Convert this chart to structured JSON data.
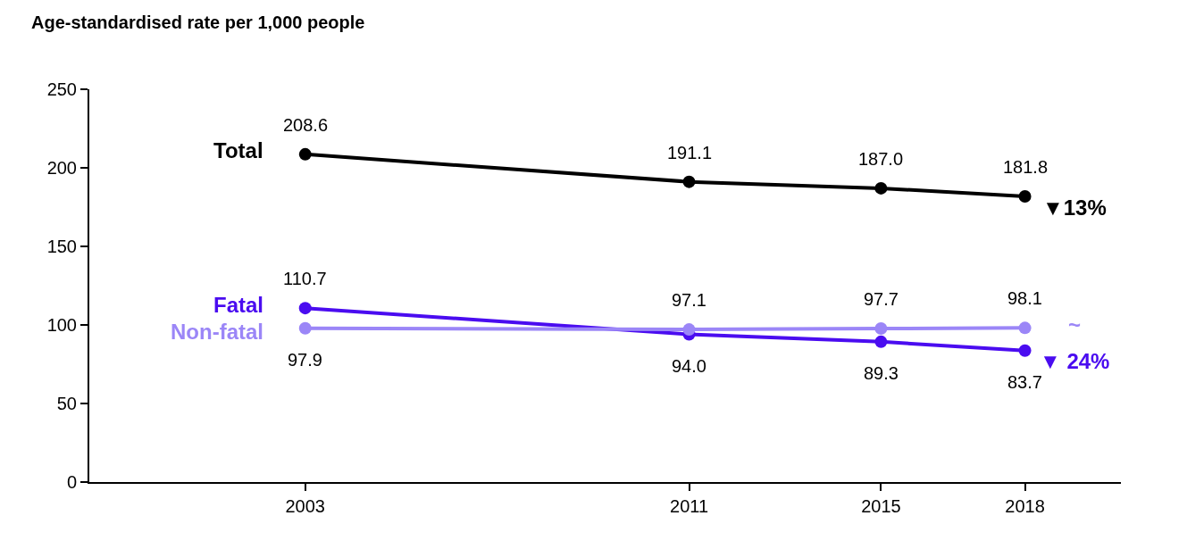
{
  "chart_data": {
    "type": "line",
    "ylabel": "Age-standardised rate per 1,000 people",
    "x": [
      2003,
      2011,
      2015,
      2018
    ],
    "series": [
      {
        "name": "Total",
        "color": "#000000",
        "values": [
          208.6,
          191.1,
          187.0,
          181.8
        ],
        "value_labels": [
          "208.6",
          "191.1",
          "187.0",
          "181.8"
        ]
      },
      {
        "name": "Fatal",
        "color": "#4a0cf0",
        "values": [
          110.7,
          94.0,
          89.3,
          83.7
        ],
        "value_labels": [
          "110.7",
          "94.0",
          "89.3",
          "83.7"
        ]
      },
      {
        "name": "Non-fatal",
        "color": "#9b86f7",
        "values": [
          97.9,
          97.1,
          97.7,
          98.1
        ],
        "value_labels": [
          "97.9",
          "97.1",
          "97.7",
          "98.1"
        ]
      }
    ],
    "marker": "circle",
    "line_style": "solid",
    "legend": false,
    "xlim": [
      1998.5,
      2020
    ],
    "xticks": [
      2003,
      2011,
      2015,
      2018
    ],
    "ylim": [
      0,
      250
    ],
    "yticks": [
      0,
      50,
      100,
      150,
      200,
      250
    ],
    "annotations": [
      "▼13%",
      "~",
      "▼ 24%"
    ]
  }
}
